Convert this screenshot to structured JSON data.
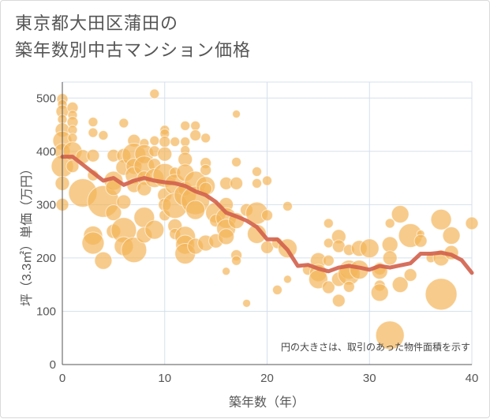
{
  "title_lines": [
    "東京都大田区蒲田の",
    "築年数別中古マンション価格"
  ],
  "chart_data": {
    "type": "scatter",
    "xlabel": "築年数（年）",
    "ylabel": "坪（3.3㎡）単価（万円）",
    "xlim": [
      0,
      40
    ],
    "ylim": [
      0,
      530
    ],
    "x_ticks": [
      0,
      10,
      20,
      30,
      40
    ],
    "y_ticks": [
      0,
      100,
      200,
      300,
      400,
      500
    ],
    "grid": true,
    "note": "円の大きさは、取引のあった物件面積を示す",
    "colors": {
      "bubble": "#f3b55a",
      "line": "#d2604b",
      "grid": "#d5e0ec"
    },
    "trend": {
      "x": [
        0,
        1,
        2,
        3,
        4,
        5,
        6,
        7,
        8,
        9,
        10,
        11,
        12,
        13,
        14,
        15,
        16,
        17,
        18,
        19,
        20,
        21,
        22,
        23,
        24,
        25,
        26,
        27,
        28,
        29,
        30,
        31,
        32,
        33,
        34,
        35,
        36,
        37,
        38,
        39,
        40
      ],
      "y": [
        390,
        390,
        375,
        360,
        345,
        350,
        337,
        345,
        350,
        345,
        342,
        340,
        335,
        325,
        318,
        305,
        285,
        278,
        270,
        258,
        235,
        235,
        215,
        185,
        187,
        180,
        175,
        182,
        185,
        182,
        178,
        185,
        182,
        186,
        190,
        208,
        208,
        210,
        206,
        196,
        172
      ]
    },
    "points": [
      {
        "x": 0,
        "y": 498,
        "s": 7
      },
      {
        "x": 0,
        "y": 488,
        "s": 6
      },
      {
        "x": 0,
        "y": 475,
        "s": 8
      },
      {
        "x": 0,
        "y": 460,
        "s": 6
      },
      {
        "x": 0,
        "y": 440,
        "s": 9
      },
      {
        "x": 0,
        "y": 420,
        "s": 12
      },
      {
        "x": 0,
        "y": 400,
        "s": 10
      },
      {
        "x": 0,
        "y": 372,
        "s": 14
      },
      {
        "x": 0,
        "y": 340,
        "s": 9
      },
      {
        "x": 0,
        "y": 300,
        "s": 8
      },
      {
        "x": 1,
        "y": 482,
        "s": 7
      },
      {
        "x": 1,
        "y": 468,
        "s": 6
      },
      {
        "x": 1,
        "y": 455,
        "s": 7
      },
      {
        "x": 1,
        "y": 440,
        "s": 6
      },
      {
        "x": 1,
        "y": 425,
        "s": 6
      },
      {
        "x": 1,
        "y": 400,
        "s": 12
      },
      {
        "x": 1,
        "y": 372,
        "s": 8
      },
      {
        "x": 2,
        "y": 322,
        "s": 18
      },
      {
        "x": 2,
        "y": 390,
        "s": 9
      },
      {
        "x": 3,
        "y": 455,
        "s": 6
      },
      {
        "x": 3,
        "y": 435,
        "s": 6
      },
      {
        "x": 3,
        "y": 392,
        "s": 8
      },
      {
        "x": 3,
        "y": 355,
        "s": 7
      },
      {
        "x": 3,
        "y": 242,
        "s": 12
      },
      {
        "x": 3,
        "y": 228,
        "s": 14
      },
      {
        "x": 4,
        "y": 430,
        "s": 6
      },
      {
        "x": 4,
        "y": 306,
        "s": 20
      },
      {
        "x": 4,
        "y": 195,
        "s": 11
      },
      {
        "x": 5,
        "y": 392,
        "s": 8
      },
      {
        "x": 5,
        "y": 345,
        "s": 12
      },
      {
        "x": 5,
        "y": 332,
        "s": 10
      },
      {
        "x": 5,
        "y": 285,
        "s": 10
      },
      {
        "x": 5,
        "y": 250,
        "s": 9
      },
      {
        "x": 6,
        "y": 453,
        "s": 6
      },
      {
        "x": 6,
        "y": 392,
        "s": 9
      },
      {
        "x": 6,
        "y": 370,
        "s": 10
      },
      {
        "x": 6,
        "y": 305,
        "s": 9
      },
      {
        "x": 6,
        "y": 252,
        "s": 16
      },
      {
        "x": 6,
        "y": 222,
        "s": 12
      },
      {
        "x": 7,
        "y": 420,
        "s": 8
      },
      {
        "x": 7,
        "y": 393,
        "s": 15
      },
      {
        "x": 7,
        "y": 372,
        "s": 10
      },
      {
        "x": 7,
        "y": 355,
        "s": 11
      },
      {
        "x": 7,
        "y": 336,
        "s": 9
      },
      {
        "x": 7,
        "y": 215,
        "s": 16
      },
      {
        "x": 8,
        "y": 415,
        "s": 6
      },
      {
        "x": 8,
        "y": 395,
        "s": 12
      },
      {
        "x": 8,
        "y": 372,
        "s": 13
      },
      {
        "x": 8,
        "y": 350,
        "s": 9
      },
      {
        "x": 8,
        "y": 330,
        "s": 9
      },
      {
        "x": 8,
        "y": 276,
        "s": 13
      },
      {
        "x": 8,
        "y": 243,
        "s": 10
      },
      {
        "x": 9,
        "y": 508,
        "s": 6
      },
      {
        "x": 9,
        "y": 420,
        "s": 6
      },
      {
        "x": 9,
        "y": 400,
        "s": 7
      },
      {
        "x": 9,
        "y": 375,
        "s": 8
      },
      {
        "x": 9,
        "y": 350,
        "s": 12
      },
      {
        "x": 9,
        "y": 253,
        "s": 12
      },
      {
        "x": 10,
        "y": 440,
        "s": 6
      },
      {
        "x": 10,
        "y": 433,
        "s": 6
      },
      {
        "x": 10,
        "y": 418,
        "s": 7
      },
      {
        "x": 10,
        "y": 395,
        "s": 9
      },
      {
        "x": 10,
        "y": 355,
        "s": 15
      },
      {
        "x": 10,
        "y": 318,
        "s": 9
      },
      {
        "x": 10,
        "y": 300,
        "s": 8
      },
      {
        "x": 10,
        "y": 280,
        "s": 7
      },
      {
        "x": 11,
        "y": 418,
        "s": 6
      },
      {
        "x": 11,
        "y": 360,
        "s": 7
      },
      {
        "x": 11,
        "y": 338,
        "s": 13
      },
      {
        "x": 11,
        "y": 298,
        "s": 16
      },
      {
        "x": 11,
        "y": 260,
        "s": 9
      },
      {
        "x": 11,
        "y": 245,
        "s": 7
      },
      {
        "x": 12,
        "y": 448,
        "s": 6
      },
      {
        "x": 12,
        "y": 418,
        "s": 6
      },
      {
        "x": 12,
        "y": 402,
        "s": 6
      },
      {
        "x": 12,
        "y": 385,
        "s": 9
      },
      {
        "x": 12,
        "y": 360,
        "s": 11
      },
      {
        "x": 12,
        "y": 330,
        "s": 9
      },
      {
        "x": 12,
        "y": 318,
        "s": 14
      },
      {
        "x": 12,
        "y": 240,
        "s": 13
      },
      {
        "x": 12,
        "y": 225,
        "s": 12
      },
      {
        "x": 12,
        "y": 208,
        "s": 13
      },
      {
        "x": 13,
        "y": 448,
        "s": 6
      },
      {
        "x": 13,
        "y": 430,
        "s": 7
      },
      {
        "x": 13,
        "y": 342,
        "s": 14
      },
      {
        "x": 13,
        "y": 308,
        "s": 18
      },
      {
        "x": 13,
        "y": 290,
        "s": 12
      },
      {
        "x": 13,
        "y": 222,
        "s": 10
      },
      {
        "x": 14,
        "y": 425,
        "s": 6
      },
      {
        "x": 14,
        "y": 378,
        "s": 7
      },
      {
        "x": 14,
        "y": 365,
        "s": 7
      },
      {
        "x": 14,
        "y": 335,
        "s": 12
      },
      {
        "x": 14,
        "y": 330,
        "s": 8
      },
      {
        "x": 14,
        "y": 228,
        "s": 10
      },
      {
        "x": 15,
        "y": 285,
        "s": 13
      },
      {
        "x": 15,
        "y": 270,
        "s": 8
      },
      {
        "x": 15,
        "y": 232,
        "s": 9
      },
      {
        "x": 16,
        "y": 340,
        "s": 8
      },
      {
        "x": 16,
        "y": 300,
        "s": 9
      },
      {
        "x": 16,
        "y": 275,
        "s": 13
      },
      {
        "x": 16,
        "y": 255,
        "s": 12
      },
      {
        "x": 16,
        "y": 240,
        "s": 10
      },
      {
        "x": 16,
        "y": 175,
        "s": 5
      },
      {
        "x": 17,
        "y": 470,
        "s": 5
      },
      {
        "x": 17,
        "y": 380,
        "s": 6
      },
      {
        "x": 17,
        "y": 340,
        "s": 8
      },
      {
        "x": 17,
        "y": 270,
        "s": 10
      },
      {
        "x": 17,
        "y": 205,
        "s": 7
      },
      {
        "x": 17,
        "y": 195,
        "s": 6
      },
      {
        "x": 18,
        "y": 290,
        "s": 8
      },
      {
        "x": 18,
        "y": 115,
        "s": 5
      },
      {
        "x": 19,
        "y": 362,
        "s": 6
      },
      {
        "x": 19,
        "y": 340,
        "s": 6
      },
      {
        "x": 19,
        "y": 284,
        "s": 14
      },
      {
        "x": 19,
        "y": 245,
        "s": 12
      },
      {
        "x": 20,
        "y": 345,
        "s": 6
      },
      {
        "x": 20,
        "y": 280,
        "s": 7
      },
      {
        "x": 20,
        "y": 220,
        "s": 8
      },
      {
        "x": 21,
        "y": 140,
        "s": 6
      },
      {
        "x": 21,
        "y": 228,
        "s": 7
      },
      {
        "x": 22,
        "y": 297,
        "s": 6
      },
      {
        "x": 22,
        "y": 218,
        "s": 12
      },
      {
        "x": 22,
        "y": 160,
        "s": 5
      },
      {
        "x": 24,
        "y": 178,
        "s": 7
      },
      {
        "x": 25,
        "y": 195,
        "s": 10
      },
      {
        "x": 25,
        "y": 172,
        "s": 11
      },
      {
        "x": 25,
        "y": 160,
        "s": 12
      },
      {
        "x": 26,
        "y": 265,
        "s": 6
      },
      {
        "x": 26,
        "y": 228,
        "s": 6
      },
      {
        "x": 26,
        "y": 195,
        "s": 7
      },
      {
        "x": 26,
        "y": 145,
        "s": 8
      },
      {
        "x": 27,
        "y": 240,
        "s": 9
      },
      {
        "x": 27,
        "y": 222,
        "s": 8
      },
      {
        "x": 27,
        "y": 160,
        "s": 9
      },
      {
        "x": 27,
        "y": 120,
        "s": 8
      },
      {
        "x": 28,
        "y": 215,
        "s": 7
      },
      {
        "x": 28,
        "y": 178,
        "s": 12
      },
      {
        "x": 28,
        "y": 170,
        "s": 14
      },
      {
        "x": 28,
        "y": 146,
        "s": 7
      },
      {
        "x": 29,
        "y": 218,
        "s": 10
      },
      {
        "x": 29,
        "y": 178,
        "s": 12
      },
      {
        "x": 30,
        "y": 218,
        "s": 12
      },
      {
        "x": 31,
        "y": 148,
        "s": 7
      },
      {
        "x": 31,
        "y": 135,
        "s": 11
      },
      {
        "x": 31,
        "y": 180,
        "s": 8
      },
      {
        "x": 31,
        "y": 175,
        "s": 10
      },
      {
        "x": 32,
        "y": 265,
        "s": 6
      },
      {
        "x": 32,
        "y": 225,
        "s": 10
      },
      {
        "x": 32,
        "y": 200,
        "s": 9
      },
      {
        "x": 32,
        "y": 55,
        "s": 18
      },
      {
        "x": 33,
        "y": 282,
        "s": 11
      },
      {
        "x": 33,
        "y": 150,
        "s": 10
      },
      {
        "x": 34,
        "y": 242,
        "s": 15
      },
      {
        "x": 34,
        "y": 168,
        "s": 8
      },
      {
        "x": 35,
        "y": 245,
        "s": 5
      },
      {
        "x": 35,
        "y": 232,
        "s": 8
      },
      {
        "x": 36,
        "y": 200,
        "s": 6
      },
      {
        "x": 37,
        "y": 272,
        "s": 13
      },
      {
        "x": 37,
        "y": 200,
        "s": 10
      },
      {
        "x": 37,
        "y": 132,
        "s": 20
      },
      {
        "x": 38,
        "y": 242,
        "s": 11
      },
      {
        "x": 38,
        "y": 210,
        "s": 9
      },
      {
        "x": 40,
        "y": 265,
        "s": 8
      }
    ]
  }
}
